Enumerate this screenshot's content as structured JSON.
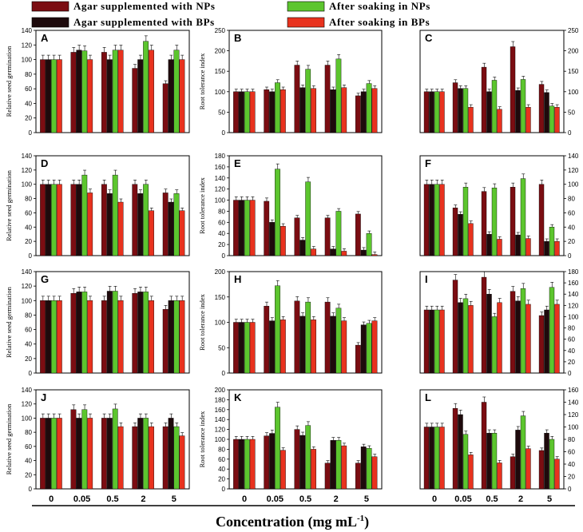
{
  "legend": [
    {
      "label": "Agar supplemented with NPs",
      "color": "#7b0d12"
    },
    {
      "label": "Agar supplemented with BPs",
      "color": "#1e0a0c"
    },
    {
      "label": "After soaking in NPs",
      "color": "#5cc52e"
    },
    {
      "label": "After soaking in BPs",
      "color": "#e8321e"
    }
  ],
  "x_axis_title": "Concentration (mg mL",
  "x_axis_title_sup": "-1",
  "x_axis_title_close": ")",
  "chart_data": [
    {
      "type": "bar",
      "panel": "A",
      "ylabel": "Relative seed germination",
      "ylim": [
        0,
        140
      ],
      "yticks": [
        0,
        20,
        40,
        60,
        80,
        100,
        120,
        140
      ],
      "categories": [
        "0",
        "0.05",
        "0.5",
        "2",
        "5"
      ],
      "series": [
        {
          "name": "Agar supplemented with NPs",
          "values": [
            100,
            110,
            110,
            88,
            67
          ]
        },
        {
          "name": "After soaking in NPs",
          "values": [
            100,
            112,
            113,
            125,
            113
          ]
        },
        {
          "name": "Agar supplemented with BPs",
          "values": [
            100,
            113,
            100,
            100,
            100
          ]
        },
        {
          "name": "After soaking in BPs",
          "values": [
            100,
            100,
            113,
            113,
            100
          ]
        }
      ]
    },
    {
      "type": "bar",
      "panel": "B",
      "ylabel": "Root tolerance index",
      "ylim": [
        0,
        250
      ],
      "yticks": [
        0,
        50,
        100,
        150,
        200,
        250
      ],
      "categories": [
        "0",
        "0.05",
        "0.5",
        "2",
        "5"
      ],
      "series": [
        {
          "name": "Agar supplemented with NPs",
          "values": [
            100,
            105,
            165,
            165,
            90
          ]
        },
        {
          "name": "After soaking in NPs",
          "values": [
            100,
            122,
            155,
            180,
            120
          ]
        },
        {
          "name": "Agar supplemented with BPs",
          "values": [
            100,
            100,
            110,
            105,
            100
          ]
        },
        {
          "name": "After soaking in BPs",
          "values": [
            100,
            105,
            108,
            110,
            108
          ]
        }
      ]
    },
    {
      "type": "bar",
      "panel": "C",
      "ylabel": "Shoot tolerance index",
      "ylim": [
        0,
        250
      ],
      "yticks": [
        0,
        50,
        100,
        150,
        200,
        250
      ],
      "categories": [
        "0",
        "0.05",
        "0.5",
        "2",
        "5"
      ],
      "series": [
        {
          "name": "Agar supplemented with NPs",
          "values": [
            100,
            122,
            160,
            210,
            118
          ]
        },
        {
          "name": "After soaking in NPs",
          "values": [
            100,
            108,
            128,
            130,
            65
          ]
        },
        {
          "name": "Agar supplemented with BPs",
          "values": [
            100,
            108,
            100,
            103,
            98
          ]
        },
        {
          "name": "After soaking in BPs",
          "values": [
            100,
            62,
            57,
            62,
            62
          ]
        }
      ]
    },
    {
      "type": "bar",
      "panel": "D",
      "ylabel": "Relative seed germination",
      "ylim": [
        0,
        140
      ],
      "yticks": [
        0,
        20,
        40,
        60,
        80,
        100,
        120,
        140
      ],
      "categories": [
        "0",
        "0.05",
        "0.5",
        "2",
        "5"
      ],
      "series": [
        {
          "name": "Agar supplemented with NPs",
          "values": [
            100,
            100,
            100,
            100,
            88
          ]
        },
        {
          "name": "After soaking in NPs",
          "values": [
            100,
            113,
            113,
            100,
            87
          ]
        },
        {
          "name": "Agar supplemented with BPs",
          "values": [
            100,
            100,
            87,
            87,
            75
          ]
        },
        {
          "name": "After soaking in BPs",
          "values": [
            100,
            88,
            75,
            63,
            63
          ]
        }
      ]
    },
    {
      "type": "bar",
      "panel": "E",
      "ylabel": "Root tolerance index",
      "ylim": [
        0,
        180
      ],
      "yticks": [
        0,
        20,
        40,
        60,
        80,
        100,
        120,
        140,
        160,
        180
      ],
      "categories": [
        "0",
        "0.05",
        "0.5",
        "2",
        "5"
      ],
      "series": [
        {
          "name": "Agar supplemented with NPs",
          "values": [
            100,
            98,
            68,
            68,
            75
          ]
        },
        {
          "name": "After soaking in NPs",
          "values": [
            100,
            156,
            133,
            80,
            40
          ]
        },
        {
          "name": "Agar supplemented with BPs",
          "values": [
            100,
            60,
            28,
            12,
            10
          ]
        },
        {
          "name": "After soaking in BPs",
          "values": [
            100,
            53,
            12,
            8,
            2
          ]
        }
      ]
    },
    {
      "type": "bar",
      "panel": "F",
      "ylabel": "Shoot tolerance index",
      "ylim": [
        0,
        140
      ],
      "yticks": [
        0,
        20,
        40,
        60,
        80,
        100,
        120,
        140
      ],
      "categories": [
        "0",
        "0.05",
        "0.5",
        "2",
        "5"
      ],
      "series": [
        {
          "name": "Agar supplemented with NPs",
          "values": [
            100,
            67,
            90,
            96,
            100
          ]
        },
        {
          "name": "After soaking in NPs",
          "values": [
            100,
            96,
            95,
            108,
            40
          ]
        },
        {
          "name": "Agar supplemented with BPs",
          "values": [
            100,
            58,
            30,
            29,
            20
          ]
        },
        {
          "name": "After soaking in BPs",
          "values": [
            100,
            45,
            23,
            24,
            20
          ]
        }
      ]
    },
    {
      "type": "bar",
      "panel": "G",
      "ylabel": "Relative seed germination",
      "ylim": [
        0,
        140
      ],
      "yticks": [
        0,
        20,
        40,
        60,
        80,
        100,
        120,
        140
      ],
      "categories": [
        "0",
        "0.05",
        "0.5",
        "2",
        "5"
      ],
      "series": [
        {
          "name": "Agar supplemented with NPs",
          "values": [
            100,
            110,
            100,
            110,
            88
          ]
        },
        {
          "name": "After soaking in NPs",
          "values": [
            100,
            112,
            113,
            112,
            100
          ]
        },
        {
          "name": "Agar supplemented with BPs",
          "values": [
            100,
            112,
            113,
            112,
            100
          ]
        },
        {
          "name": "After soaking in BPs",
          "values": [
            100,
            100,
            100,
            100,
            100
          ]
        }
      ]
    },
    {
      "type": "bar",
      "panel": "H",
      "ylabel": "Root tolerance index",
      "ylim": [
        0,
        200
      ],
      "yticks": [
        0,
        50,
        100,
        150,
        200
      ],
      "categories": [
        "0",
        "0.05",
        "0.5",
        "2",
        "5"
      ],
      "series": [
        {
          "name": "Agar supplemented with NPs",
          "values": [
            100,
            132,
            142,
            140,
            55
          ]
        },
        {
          "name": "After soaking in NPs",
          "values": [
            100,
            172,
            140,
            128,
            98
          ]
        },
        {
          "name": "Agar supplemented with BPs",
          "values": [
            100,
            103,
            112,
            112,
            95
          ]
        },
        {
          "name": "After soaking in BPs",
          "values": [
            100,
            105,
            105,
            103,
            103
          ]
        }
      ]
    },
    {
      "type": "bar",
      "panel": "I",
      "ylabel": "Shoot tolerance index",
      "ylim": [
        0,
        180
      ],
      "yticks": [
        0,
        20,
        40,
        60,
        80,
        100,
        120,
        140,
        160,
        180
      ],
      "categories": [
        "0",
        "0.05",
        "0.5",
        "2",
        "5"
      ],
      "series": [
        {
          "name": "Agar supplemented with NPs",
          "values": [
            112,
            165,
            170,
            145,
            102
          ]
        },
        {
          "name": "After soaking in NPs",
          "values": [
            112,
            132,
            100,
            150,
            152
          ]
        },
        {
          "name": "Agar supplemented with BPs",
          "values": [
            112,
            125,
            140,
            128,
            112
          ]
        },
        {
          "name": "After soaking in BPs",
          "values": [
            112,
            120,
            125,
            122,
            122
          ]
        }
      ]
    },
    {
      "type": "bar",
      "panel": "J",
      "ylabel": "Relative seed germination",
      "ylim": [
        0,
        140
      ],
      "yticks": [
        0,
        20,
        40,
        60,
        80,
        100,
        120,
        140
      ],
      "categories": [
        "0",
        "0.05",
        "0.5",
        "2",
        "5"
      ],
      "series": [
        {
          "name": "Agar supplemented with NPs",
          "values": [
            100,
            112,
            100,
            88,
            88
          ]
        },
        {
          "name": "After soaking in NPs",
          "values": [
            100,
            112,
            113,
            100,
            88
          ]
        },
        {
          "name": "Agar supplemented with BPs",
          "values": [
            100,
            100,
            100,
            100,
            100
          ]
        },
        {
          "name": "After soaking in BPs",
          "values": [
            100,
            100,
            88,
            88,
            75
          ]
        }
      ]
    },
    {
      "type": "bar",
      "panel": "K",
      "ylabel": "Root tolerance index",
      "ylim": [
        0,
        200
      ],
      "yticks": [
        0,
        20,
        40,
        60,
        80,
        100,
        120,
        140,
        160,
        180,
        200
      ],
      "categories": [
        "0",
        "0.05",
        "0.5",
        "2",
        "5"
      ],
      "series": [
        {
          "name": "Agar supplemented with NPs",
          "values": [
            100,
            107,
            120,
            52,
            52
          ]
        },
        {
          "name": "After soaking in NPs",
          "values": [
            100,
            165,
            128,
            98,
            82
          ]
        },
        {
          "name": "Agar supplemented with BPs",
          "values": [
            100,
            112,
            108,
            98,
            85
          ]
        },
        {
          "name": "After soaking in BPs",
          "values": [
            100,
            78,
            80,
            87,
            65
          ]
        }
      ]
    },
    {
      "type": "bar",
      "panel": "L",
      "ylabel": "Shoot tolerance index",
      "ylim": [
        0,
        160
      ],
      "yticks": [
        0,
        20,
        40,
        60,
        80,
        100,
        120,
        140,
        160
      ],
      "categories": [
        "0",
        "0.05",
        "0.5",
        "2",
        "5"
      ],
      "series": [
        {
          "name": "Agar supplemented with NPs",
          "values": [
            100,
            130,
            140,
            52,
            62
          ]
        },
        {
          "name": "After soaking in NPs",
          "values": [
            100,
            88,
            90,
            118,
            80
          ]
        },
        {
          "name": "Agar supplemented with BPs",
          "values": [
            100,
            120,
            90,
            95,
            90
          ]
        },
        {
          "name": "After soaking in BPs",
          "values": [
            100,
            55,
            42,
            65,
            48
          ]
        }
      ]
    }
  ]
}
